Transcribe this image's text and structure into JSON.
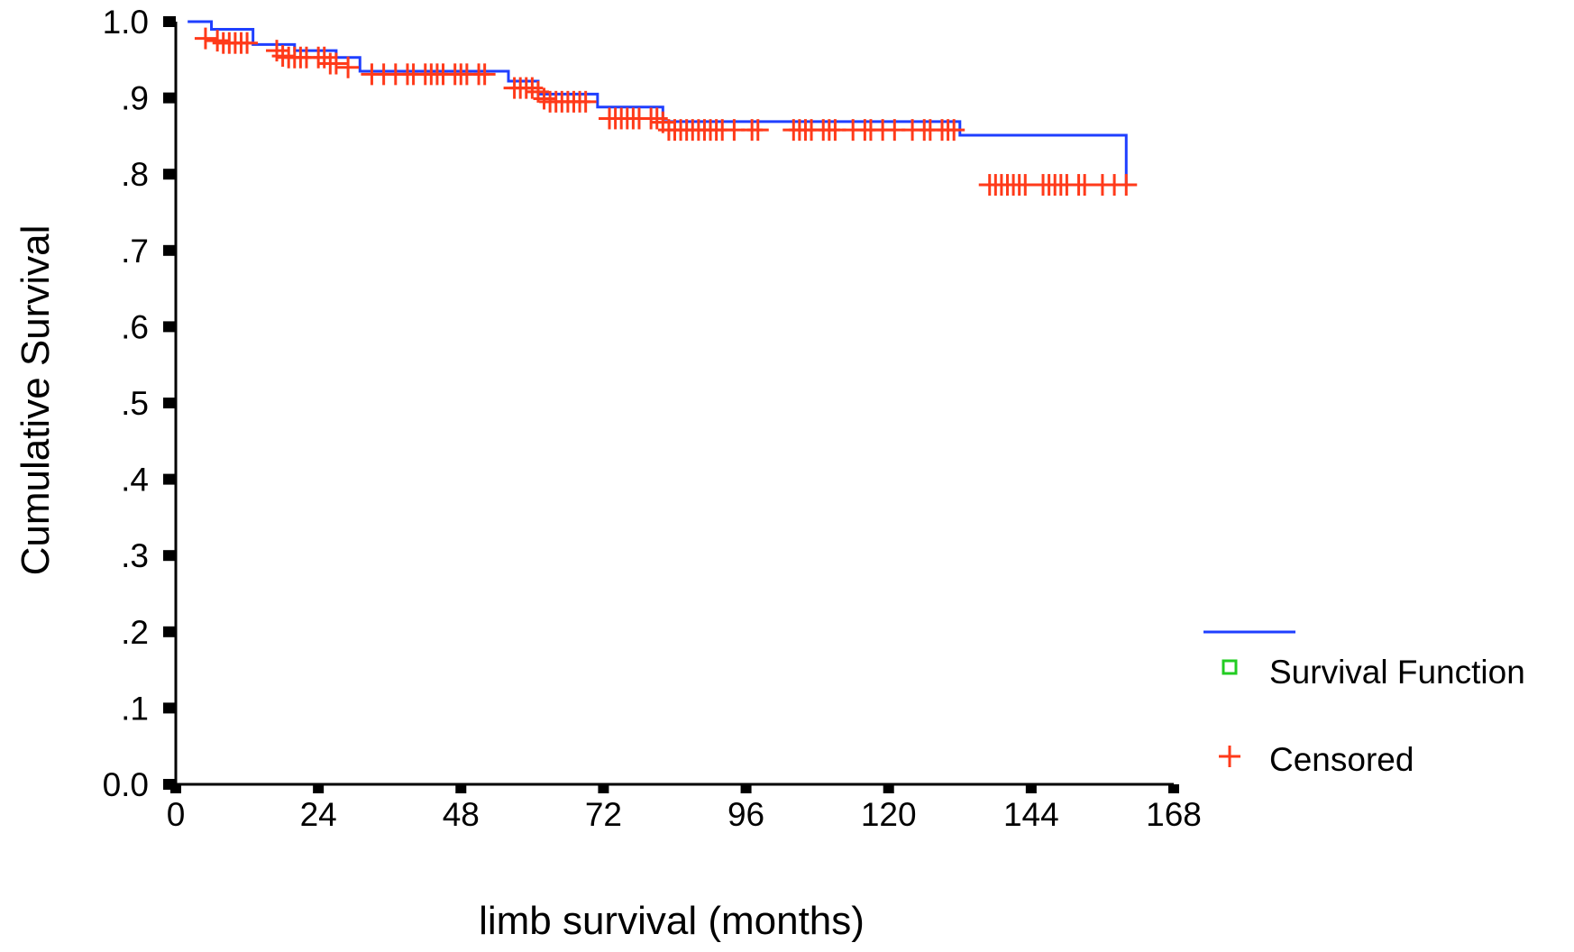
{
  "chart_data": {
    "type": "line",
    "xlabel": "limb survival (months)",
    "ylabel": "Cumulative Survival",
    "xlim": [
      0,
      168
    ],
    "ylim": [
      0,
      1.0
    ],
    "x_ticks": [
      0,
      24,
      48,
      72,
      96,
      120,
      144,
      168
    ],
    "x_tick_labels": [
      "0",
      "24",
      "48",
      "72",
      "96",
      "120",
      "144",
      "168"
    ],
    "y_ticks": [
      0,
      0.1,
      0.2,
      0.3,
      0.4,
      0.5,
      0.6,
      0.7,
      0.8,
      0.9,
      1.0
    ],
    "y_tick_labels": [
      "0.0",
      ".1",
      ".2",
      ".3",
      ".4",
      ".5",
      ".6",
      ".7",
      ".8",
      ".9",
      "1.0"
    ],
    "grid": false,
    "legend_position": "right",
    "series": [
      {
        "name": "Survival Function",
        "color": "#1f3fff",
        "step": true,
        "x": [
          2,
          6,
          13,
          20,
          27,
          31,
          56,
          61,
          71,
          82,
          132,
          160
        ],
        "y": [
          1.0,
          0.99,
          0.97,
          0.962,
          0.953,
          0.935,
          0.922,
          0.905,
          0.888,
          0.869,
          0.851,
          0.786
        ]
      },
      {
        "name": "Censored",
        "color": "#ff3a1a",
        "marker": "+",
        "points": [
          [
            5,
            0.978
          ],
          [
            7,
            0.975
          ],
          [
            8,
            0.972
          ],
          [
            9,
            0.972
          ],
          [
            10,
            0.972
          ],
          [
            11,
            0.972
          ],
          [
            12,
            0.972
          ],
          [
            17,
            0.962
          ],
          [
            18,
            0.955
          ],
          [
            19,
            0.953
          ],
          [
            20,
            0.953
          ],
          [
            21,
            0.953
          ],
          [
            22,
            0.953
          ],
          [
            24,
            0.953
          ],
          [
            25,
            0.953
          ],
          [
            26,
            0.945
          ],
          [
            27,
            0.945
          ],
          [
            29,
            0.94
          ],
          [
            33,
            0.931
          ],
          [
            35,
            0.931
          ],
          [
            37,
            0.931
          ],
          [
            39,
            0.931
          ],
          [
            40,
            0.931
          ],
          [
            42,
            0.931
          ],
          [
            43,
            0.931
          ],
          [
            44,
            0.931
          ],
          [
            45,
            0.931
          ],
          [
            47,
            0.931
          ],
          [
            48,
            0.931
          ],
          [
            49,
            0.931
          ],
          [
            51,
            0.931
          ],
          [
            52,
            0.931
          ],
          [
            57,
            0.913
          ],
          [
            58,
            0.913
          ],
          [
            59,
            0.913
          ],
          [
            60,
            0.913
          ],
          [
            61,
            0.908
          ],
          [
            62,
            0.899
          ],
          [
            63,
            0.895
          ],
          [
            64,
            0.895
          ],
          [
            65,
            0.895
          ],
          [
            66,
            0.895
          ],
          [
            67,
            0.895
          ],
          [
            68,
            0.895
          ],
          [
            69,
            0.895
          ],
          [
            73,
            0.873
          ],
          [
            74,
            0.873
          ],
          [
            75,
            0.873
          ],
          [
            76,
            0.873
          ],
          [
            77,
            0.873
          ],
          [
            78,
            0.873
          ],
          [
            80,
            0.873
          ],
          [
            81,
            0.873
          ],
          [
            82,
            0.868
          ],
          [
            83,
            0.858
          ],
          [
            84,
            0.858
          ],
          [
            85,
            0.858
          ],
          [
            86,
            0.858
          ],
          [
            87,
            0.858
          ],
          [
            88,
            0.858
          ],
          [
            89,
            0.858
          ],
          [
            90,
            0.858
          ],
          [
            91,
            0.858
          ],
          [
            92,
            0.858
          ],
          [
            94,
            0.858
          ],
          [
            97,
            0.858
          ],
          [
            98,
            0.858
          ],
          [
            104,
            0.858
          ],
          [
            105,
            0.858
          ],
          [
            106,
            0.858
          ],
          [
            107,
            0.858
          ],
          [
            109,
            0.858
          ],
          [
            110,
            0.858
          ],
          [
            111,
            0.858
          ],
          [
            114,
            0.858
          ],
          [
            116,
            0.858
          ],
          [
            117,
            0.858
          ],
          [
            119,
            0.858
          ],
          [
            121,
            0.858
          ],
          [
            124,
            0.858
          ],
          [
            126,
            0.858
          ],
          [
            127,
            0.858
          ],
          [
            129,
            0.858
          ],
          [
            130,
            0.858
          ],
          [
            131,
            0.858
          ],
          [
            137,
            0.786
          ],
          [
            138,
            0.786
          ],
          [
            139,
            0.786
          ],
          [
            140,
            0.786
          ],
          [
            141,
            0.786
          ],
          [
            142,
            0.786
          ],
          [
            143,
            0.786
          ],
          [
            146,
            0.786
          ],
          [
            147,
            0.786
          ],
          [
            148,
            0.786
          ],
          [
            149,
            0.786
          ],
          [
            150,
            0.786
          ],
          [
            152,
            0.786
          ],
          [
            153,
            0.786
          ],
          [
            156,
            0.786
          ],
          [
            158,
            0.786
          ],
          [
            160,
            0.786
          ]
        ]
      }
    ],
    "legend": [
      {
        "label": "Survival Function",
        "color": "#1f3fff",
        "symbol": "line",
        "marker_color": "#22cc22"
      },
      {
        "label": "Censored",
        "color": "#ff3a1a",
        "symbol": "plus"
      }
    ]
  }
}
